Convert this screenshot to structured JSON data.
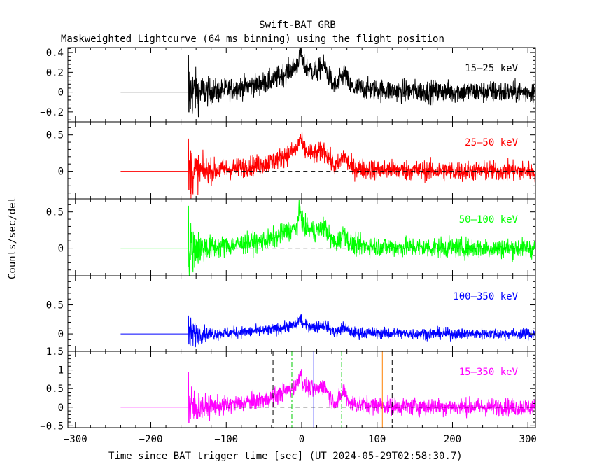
{
  "chart_data": {
    "type": "line",
    "title": "Swift-BAT GRB",
    "subtitle": "Maskweighted Lightcurve (64 ms binning) using the flight position",
    "xlabel": "Time since BAT trigger time [sec] (UT 2024-05-29T02:58:30.7)",
    "ylabel": "Counts/sec/det",
    "xlim": [
      -310,
      310
    ],
    "xticks": [
      -300,
      -200,
      -100,
      0,
      100,
      200,
      300
    ],
    "panels": [
      {
        "name": "15-25 keV",
        "label": "15–25 keV",
        "color": "#000000",
        "ylim": [
          -0.3,
          0.45
        ],
        "yticks": [
          -0.2,
          0,
          0.2,
          0.4
        ],
        "yticklabels": [
          "−0.2",
          "0",
          "0.2",
          "0.4"
        ],
        "noise": 0.08,
        "peak": 0.25,
        "spike": 0.42,
        "zero_line": false
      },
      {
        "name": "25-50 keV",
        "label": "25–50 keV",
        "color": "#ff0000",
        "ylim": [
          -0.38,
          0.68
        ],
        "yticks": [
          0,
          0.5
        ],
        "yticklabels": [
          "0",
          "0.5"
        ],
        "noise": 0.1,
        "peak": 0.28,
        "spike": 0.5,
        "zero_line": true
      },
      {
        "name": "50-100 keV",
        "label": "50–100 keV",
        "color": "#00ff00",
        "ylim": [
          -0.38,
          0.68
        ],
        "yticks": [
          0,
          0.5
        ],
        "yticklabels": [
          "0",
          "0.5"
        ],
        "noise": 0.1,
        "peak": 0.28,
        "spike": 0.65,
        "zero_line": true
      },
      {
        "name": "100-350 keV",
        "label": "100–350 keV",
        "color": "#0000ff",
        "ylim": [
          -0.3,
          1.0
        ],
        "yticks": [
          0,
          0.5
        ],
        "yticklabels": [
          "0",
          "0.5"
        ],
        "noise": 0.07,
        "peak": 0.15,
        "spike": 0.35,
        "zero_line": false
      },
      {
        "name": "15-350 keV",
        "label": "15–350 keV",
        "color": "#ff00ff",
        "ylim": [
          -0.55,
          1.5
        ],
        "yticks": [
          -0.5,
          0,
          0.5,
          1,
          1.5
        ],
        "yticklabels": [
          "−0.5",
          "0",
          "0.5",
          "1",
          "1.5"
        ],
        "noise": 0.17,
        "peak": 0.55,
        "spike": 1.05,
        "zero_line": true
      }
    ],
    "pre_trigger_flat": [
      -240,
      -150
    ],
    "data_start": -150,
    "zero_line_range": [
      -100,
      310
    ],
    "markers": [
      {
        "x": -38,
        "color": "#000000",
        "style": "dashed"
      },
      {
        "x": -13,
        "color": "#00cc00",
        "style": "dashdot"
      },
      {
        "x": 16,
        "color": "#0000ff",
        "style": "solid"
      },
      {
        "x": 53,
        "color": "#00cc00",
        "style": "dashdot"
      },
      {
        "x": 107,
        "color": "#ff8000",
        "style": "solid"
      },
      {
        "x": 120,
        "color": "#000000",
        "style": "dashed"
      }
    ]
  }
}
